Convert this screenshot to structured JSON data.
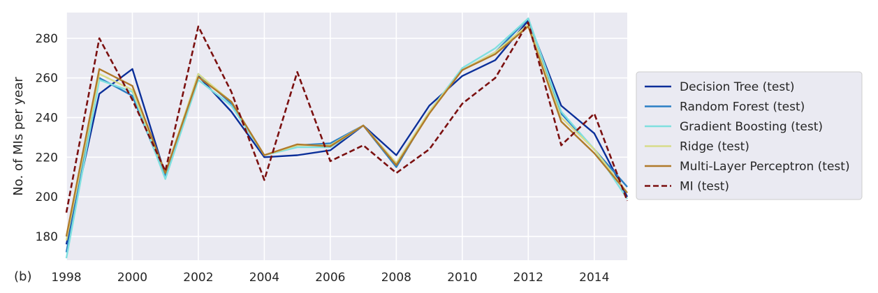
{
  "panel_label": "(b)",
  "chart_data": {
    "type": "line",
    "title": "",
    "xlabel": "",
    "ylabel": "No. of MIs per year",
    "xlim": [
      1998,
      2015
    ],
    "ylim": [
      168,
      293
    ],
    "x_ticks": [
      1998,
      2000,
      2002,
      2004,
      2006,
      2008,
      2010,
      2012,
      2014
    ],
    "y_ticks": [
      180,
      200,
      220,
      240,
      260,
      280
    ],
    "grid": true,
    "legend_position": "right-outside",
    "x": [
      1998,
      1999,
      2000,
      2001,
      2002,
      2003,
      2004,
      2005,
      2006,
      2007,
      2008,
      2009,
      2010,
      2011,
      2012,
      2013,
      2014,
      2015
    ],
    "series": [
      {
        "name": "Decision Tree (test)",
        "color": "#0b2f99",
        "dash": false,
        "values": [
          176,
          252,
          264.5,
          211,
          261,
          243,
          220,
          221,
          223.5,
          236,
          221,
          246,
          261,
          269,
          289,
          246,
          232,
          200
        ]
      },
      {
        "name": "Random Forest (test)",
        "color": "#2b7fc4",
        "dash": false,
        "values": [
          172,
          260,
          251,
          210,
          262,
          247,
          221,
          226,
          227,
          236,
          215,
          243,
          264,
          273,
          290,
          242,
          224,
          205
        ]
      },
      {
        "name": "Gradient Boosting (test)",
        "color": "#7fdfdf",
        "dash": false,
        "values": [
          169,
          259,
          253,
          209,
          259,
          246,
          221,
          225,
          225,
          236,
          217,
          243,
          265,
          275,
          290,
          243,
          224,
          199
        ]
      },
      {
        "name": "Ridge (test)",
        "color": "#d8dc8a",
        "dash": false,
        "values": [
          178,
          262,
          254,
          212,
          262,
          248,
          221,
          226,
          226,
          236,
          217,
          243,
          264,
          273,
          287,
          240,
          224,
          202
        ]
      },
      {
        "name": "Multi-Layer Perceptron (test)",
        "color": "#b07a2a",
        "dash": false,
        "values": [
          180,
          264.5,
          256,
          212,
          260.5,
          248,
          221,
          226.5,
          225.5,
          236,
          216,
          242,
          264,
          272,
          286,
          238,
          222,
          202
        ]
      },
      {
        "name": "MI (test)",
        "color": "#7b1010",
        "dash": true,
        "values": [
          192,
          280,
          249,
          213,
          286,
          253,
          208.5,
          263,
          218,
          226,
          212,
          224,
          247,
          260,
          288,
          226,
          242,
          198
        ]
      }
    ]
  }
}
